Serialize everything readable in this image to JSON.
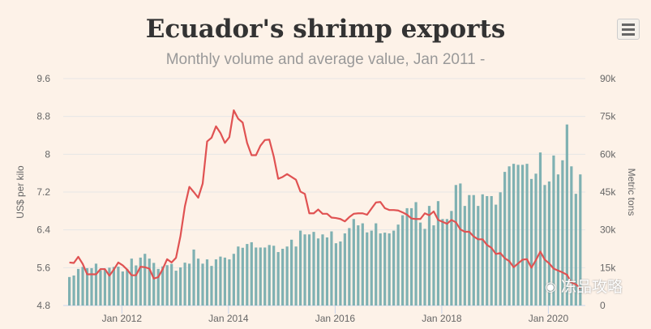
{
  "chart_data": {
    "type": "bar+line",
    "title": "Ecuador's shrimp exports",
    "subtitle": "Monthly volume and average value, Jan 2011 -",
    "ylabel_left": "US$ per kilo",
    "ylabel_right": "Metric tons",
    "ylim_left": [
      4.8,
      9.6
    ],
    "ylim_right": [
      0,
      90000
    ],
    "yticks_left": [
      "4.8",
      "5.6",
      "6.4",
      "7.2",
      "8",
      "8.8",
      "9.6"
    ],
    "yticks_right": [
      "0",
      "15k",
      "30k",
      "45k",
      "60k",
      "75k",
      "90k"
    ],
    "xticks": [
      "Jan 2012",
      "Jan 2014",
      "Jan 2016",
      "Jan 2018",
      "Jan 2020"
    ],
    "grid": true,
    "colors": {
      "bars": "#7fb1b2",
      "line": "#e05252"
    },
    "x": [
      "2011-01",
      "2011-02",
      "2011-03",
      "2011-04",
      "2011-05",
      "2011-06",
      "2011-07",
      "2011-08",
      "2011-09",
      "2011-10",
      "2011-11",
      "2011-12",
      "2012-01",
      "2012-02",
      "2012-03",
      "2012-04",
      "2012-05",
      "2012-06",
      "2012-07",
      "2012-08",
      "2012-09",
      "2012-10",
      "2012-11",
      "2012-12",
      "2013-01",
      "2013-02",
      "2013-03",
      "2013-04",
      "2013-05",
      "2013-06",
      "2013-07",
      "2013-08",
      "2013-09",
      "2013-10",
      "2013-11",
      "2013-12",
      "2014-01",
      "2014-02",
      "2014-03",
      "2014-04",
      "2014-05",
      "2014-06",
      "2014-07",
      "2014-08",
      "2014-09",
      "2014-10",
      "2014-11",
      "2014-12",
      "2015-01",
      "2015-02",
      "2015-03",
      "2015-04",
      "2015-05",
      "2015-06",
      "2015-07",
      "2015-08",
      "2015-09",
      "2015-10",
      "2015-11",
      "2015-12",
      "2016-01",
      "2016-02",
      "2016-03",
      "2016-04",
      "2016-05",
      "2016-06",
      "2016-07",
      "2016-08",
      "2016-09",
      "2016-10",
      "2016-11",
      "2016-12",
      "2017-01",
      "2017-02",
      "2017-03",
      "2017-04",
      "2017-05",
      "2017-06",
      "2017-07",
      "2017-08",
      "2017-09",
      "2017-10",
      "2017-11",
      "2017-12",
      "2018-01",
      "2018-02",
      "2018-03",
      "2018-04",
      "2018-05",
      "2018-06",
      "2018-07",
      "2018-08",
      "2018-09",
      "2018-10",
      "2018-11",
      "2018-12",
      "2019-01",
      "2019-02",
      "2019-03",
      "2019-04",
      "2019-05",
      "2019-06",
      "2019-07",
      "2019-08",
      "2019-09",
      "2019-10",
      "2019-11",
      "2019-12",
      "2020-01",
      "2020-02",
      "2020-03",
      "2020-04",
      "2020-05",
      "2020-06",
      "2020-07",
      "2020-08"
    ],
    "series": [
      {
        "type": "bar",
        "axis": "right",
        "values": [
          11300,
          11900,
          14500,
          15300,
          14800,
          14800,
          16600,
          14000,
          14300,
          15000,
          15300,
          15400,
          13500,
          14500,
          18600,
          15900,
          19000,
          20500,
          18600,
          16900,
          14500,
          15500,
          16000,
          16500,
          13800,
          15100,
          17000,
          16600,
          22200,
          18600,
          16600,
          18300,
          15700,
          18300,
          19400,
          19000,
          18300,
          20500,
          23400,
          22900,
          24400,
          25100,
          23000,
          23000,
          23000,
          24000,
          23700,
          21200,
          22500,
          23400,
          26100,
          23400,
          29700,
          28200,
          28200,
          29200,
          26600,
          28200,
          27000,
          29400,
          24700,
          25400,
          28600,
          30700,
          34300,
          31800,
          32600,
          29000,
          29700,
          32600,
          28600,
          28900,
          28600,
          29700,
          32100,
          35800,
          38600,
          38600,
          41000,
          32900,
          30400,
          39500,
          31800,
          41400,
          34300,
          34300,
          37500,
          47800,
          48400,
          39500,
          43800,
          43800,
          39500,
          44100,
          43400,
          43400,
          40000,
          44900,
          53000,
          55200,
          56200,
          55800,
          55800,
          56200,
          50200,
          52300,
          60700,
          47800,
          49200,
          59500,
          52000,
          57600,
          71800,
          55200,
          44300,
          52000
        ]
      },
      {
        "type": "line",
        "axis": "left",
        "values": [
          5.71,
          5.7,
          5.83,
          5.68,
          5.46,
          5.46,
          5.46,
          5.57,
          5.57,
          5.43,
          5.56,
          5.71,
          5.65,
          5.56,
          5.44,
          5.44,
          5.62,
          5.61,
          5.58,
          5.37,
          5.4,
          5.57,
          5.78,
          5.71,
          5.81,
          6.27,
          6.9,
          7.31,
          7.2,
          7.08,
          7.38,
          8.27,
          8.35,
          8.59,
          8.45,
          8.24,
          8.36,
          8.93,
          8.75,
          8.67,
          8.24,
          7.98,
          7.98,
          8.18,
          8.3,
          8.31,
          7.95,
          7.48,
          7.52,
          7.58,
          7.52,
          7.46,
          7.21,
          7.16,
          6.75,
          6.75,
          6.83,
          6.74,
          6.74,
          6.66,
          6.65,
          6.63,
          6.58,
          6.67,
          6.74,
          6.75,
          6.75,
          6.72,
          6.85,
          6.98,
          6.99,
          6.86,
          6.82,
          6.82,
          6.81,
          6.77,
          6.72,
          6.64,
          6.63,
          6.63,
          6.75,
          6.71,
          6.79,
          6.61,
          6.57,
          6.53,
          6.61,
          6.56,
          6.41,
          6.36,
          6.36,
          6.26,
          6.2,
          6.2,
          6.08,
          6.02,
          5.89,
          5.91,
          5.8,
          5.74,
          5.61,
          5.69,
          5.77,
          5.78,
          5.6,
          5.76,
          5.94,
          5.77,
          5.69,
          5.58,
          5.54,
          5.5,
          5.45,
          5.28,
          5.25,
          5.15
        ]
      }
    ]
  },
  "watermark": "冻品攻略",
  "menu_icon": "hamburger-icon"
}
